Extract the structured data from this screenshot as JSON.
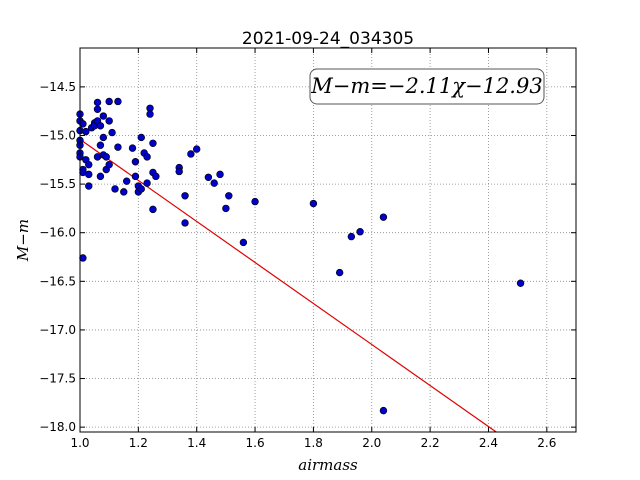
{
  "chart_data": {
    "type": "scatter",
    "title": "2021-09-24_034305",
    "xlabel": "airmass",
    "ylabel": "M−m",
    "xlim": [
      1.0,
      2.7
    ],
    "ylim": [
      -18.05,
      -14.1
    ],
    "y_inverted": true,
    "grid": true,
    "x_ticks": [
      1.0,
      1.2,
      1.4,
      1.6,
      1.8,
      2.0,
      2.2,
      2.4,
      2.6
    ],
    "x_tick_labels": [
      "1.0",
      "1.2",
      "1.4",
      "1.6",
      "1.8",
      "2.0",
      "2.2",
      "2.4",
      "2.6"
    ],
    "y_ticks": [
      -14.5,
      -15.0,
      -15.5,
      -16.0,
      -16.5,
      -17.0,
      -17.5,
      -18.0
    ],
    "y_tick_labels": [
      "−14.5",
      "−15.0",
      "−15.5",
      "−16.0",
      "−16.5",
      "−17.0",
      "−17.5",
      "−18.0"
    ],
    "annotation": "M−m=−2.11χ−12.93",
    "fit": {
      "slope": -2.11,
      "intercept": -12.93,
      "color": "#e00000"
    },
    "point_color": "#0000c8",
    "points": [
      [
        1.0,
        -14.78
      ],
      [
        1.0,
        -14.85
      ],
      [
        1.0,
        -14.95
      ],
      [
        1.0,
        -15.05
      ],
      [
        1.0,
        -15.1
      ],
      [
        1.0,
        -15.18
      ],
      [
        1.0,
        -15.22
      ],
      [
        1.01,
        -15.35
      ],
      [
        1.01,
        -15.38
      ],
      [
        1.01,
        -14.88
      ],
      [
        1.01,
        -16.26
      ],
      [
        1.02,
        -14.96
      ],
      [
        1.02,
        -15.25
      ],
      [
        1.03,
        -15.3
      ],
      [
        1.03,
        -15.4
      ],
      [
        1.03,
        -15.52
      ],
      [
        1.04,
        -14.92
      ],
      [
        1.05,
        -14.87
      ],
      [
        1.05,
        -14.9
      ],
      [
        1.06,
        -14.66
      ],
      [
        1.06,
        -14.73
      ],
      [
        1.06,
        -14.85
      ],
      [
        1.06,
        -15.22
      ],
      [
        1.07,
        -14.9
      ],
      [
        1.07,
        -15.1
      ],
      [
        1.07,
        -15.42
      ],
      [
        1.08,
        -14.8
      ],
      [
        1.08,
        -15.02
      ],
      [
        1.08,
        -15.2
      ],
      [
        1.09,
        -15.35
      ],
      [
        1.09,
        -15.22
      ],
      [
        1.1,
        -14.65
      ],
      [
        1.1,
        -14.85
      ],
      [
        1.1,
        -15.3
      ],
      [
        1.11,
        -14.97
      ],
      [
        1.12,
        -15.55
      ],
      [
        1.13,
        -14.65
      ],
      [
        1.13,
        -15.12
      ],
      [
        1.15,
        -15.58
      ],
      [
        1.16,
        -15.47
      ],
      [
        1.18,
        -15.13
      ],
      [
        1.19,
        -15.27
      ],
      [
        1.19,
        -15.42
      ],
      [
        1.2,
        -15.52
      ],
      [
        1.2,
        -15.58
      ],
      [
        1.21,
        -15.02
      ],
      [
        1.21,
        -15.55
      ],
      [
        1.22,
        -15.18
      ],
      [
        1.23,
        -15.22
      ],
      [
        1.23,
        -15.49
      ],
      [
        1.24,
        -14.72
      ],
      [
        1.24,
        -14.78
      ],
      [
        1.25,
        -15.08
      ],
      [
        1.25,
        -15.38
      ],
      [
        1.25,
        -15.76
      ],
      [
        1.26,
        -15.42
      ],
      [
        1.34,
        -15.33
      ],
      [
        1.34,
        -15.37
      ],
      [
        1.36,
        -15.62
      ],
      [
        1.36,
        -15.9
      ],
      [
        1.38,
        -15.19
      ],
      [
        1.4,
        -15.14
      ],
      [
        1.44,
        -15.43
      ],
      [
        1.46,
        -15.49
      ],
      [
        1.48,
        -15.4
      ],
      [
        1.5,
        -15.75
      ],
      [
        1.51,
        -15.62
      ],
      [
        1.56,
        -16.1
      ],
      [
        1.6,
        -15.68
      ],
      [
        1.8,
        -15.7
      ],
      [
        1.89,
        -16.41
      ],
      [
        1.93,
        -16.04
      ],
      [
        1.96,
        -15.99
      ],
      [
        2.04,
        -15.84
      ],
      [
        2.04,
        -17.83
      ],
      [
        2.51,
        -16.52
      ]
    ]
  }
}
